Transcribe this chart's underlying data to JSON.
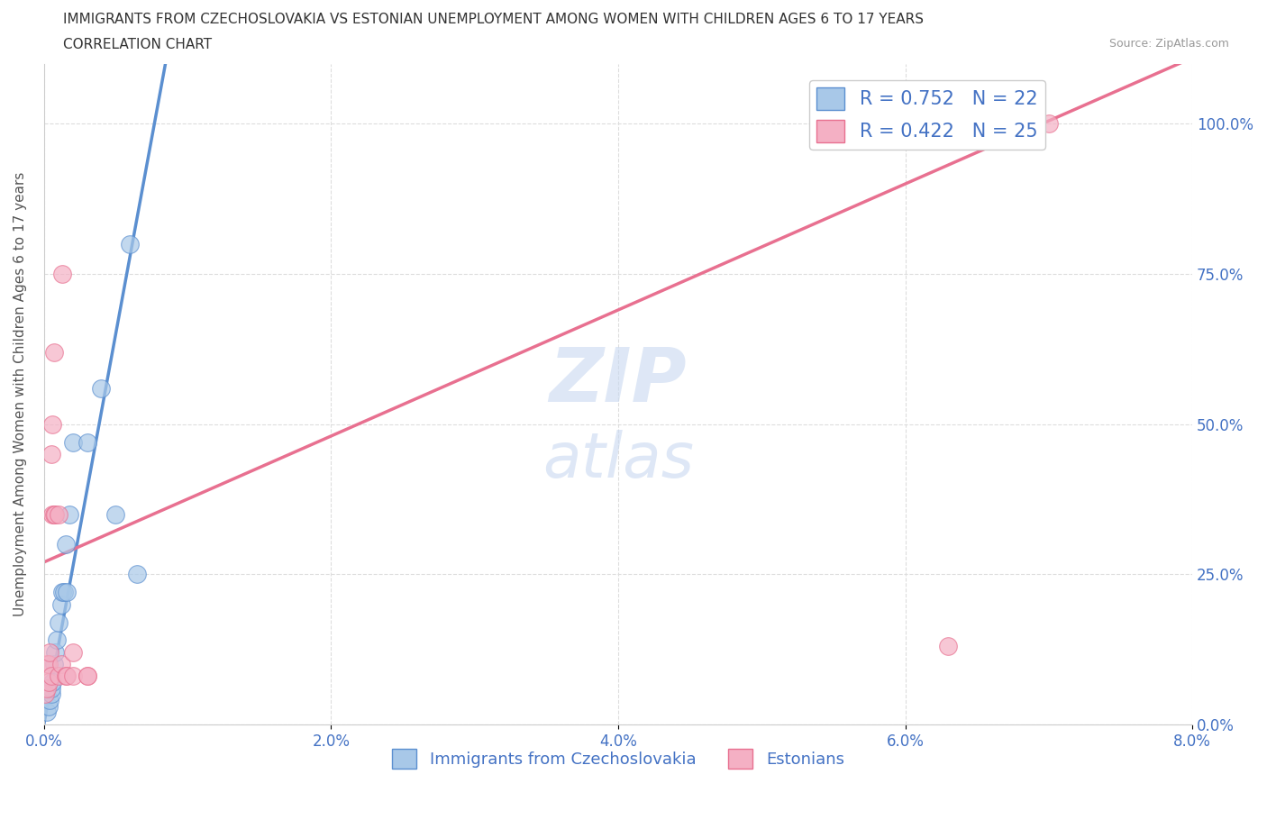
{
  "title_line1": "IMMIGRANTS FROM CZECHOSLOVAKIA VS ESTONIAN UNEMPLOYMENT AMONG WOMEN WITH CHILDREN AGES 6 TO 17 YEARS",
  "title_line2": "CORRELATION CHART",
  "source": "Source: ZipAtlas.com",
  "ylabel": "Unemployment Among Women with Children Ages 6 to 17 years",
  "xlim": [
    0.0,
    0.08
  ],
  "ylim": [
    0.0,
    1.1
  ],
  "xticks": [
    0.0,
    0.02,
    0.04,
    0.06,
    0.08
  ],
  "xtick_labels": [
    "0.0%",
    "2.0%",
    "4.0%",
    "6.0%",
    "8.0%"
  ],
  "yticks": [
    0.0,
    0.25,
    0.5,
    0.75,
    1.0
  ],
  "ytick_labels": [
    "0.0%",
    "25.0%",
    "50.0%",
    "75.0%",
    "100.0%"
  ],
  "blue_color": "#A8C8E8",
  "pink_color": "#F4B0C4",
  "blue_line_color": "#5B8FD0",
  "pink_line_color": "#E87090",
  "legend_text_color": "#4472C4",
  "R_blue": 0.752,
  "N_blue": 22,
  "R_pink": 0.422,
  "N_pink": 25,
  "blue_points_x": [
    0.0002,
    0.0003,
    0.0004,
    0.0005,
    0.0005,
    0.0006,
    0.0007,
    0.0008,
    0.0009,
    0.001,
    0.0012,
    0.0013,
    0.0014,
    0.0015,
    0.0016,
    0.0018,
    0.002,
    0.003,
    0.004,
    0.005,
    0.006,
    0.0065
  ],
  "blue_points_y": [
    0.02,
    0.03,
    0.04,
    0.05,
    0.06,
    0.07,
    0.1,
    0.12,
    0.14,
    0.17,
    0.2,
    0.22,
    0.22,
    0.3,
    0.22,
    0.35,
    0.47,
    0.47,
    0.56,
    0.35,
    0.8,
    0.25
  ],
  "pink_points_x": [
    0.0001,
    0.0002,
    0.0002,
    0.0003,
    0.0003,
    0.0004,
    0.0005,
    0.0005,
    0.0006,
    0.0006,
    0.0007,
    0.0007,
    0.0008,
    0.001,
    0.001,
    0.0012,
    0.0013,
    0.0015,
    0.0016,
    0.002,
    0.002,
    0.003,
    0.003,
    0.063,
    0.07
  ],
  "pink_points_y": [
    0.05,
    0.06,
    0.1,
    0.07,
    0.1,
    0.12,
    0.08,
    0.45,
    0.35,
    0.5,
    0.35,
    0.62,
    0.35,
    0.08,
    0.35,
    0.1,
    0.75,
    0.08,
    0.08,
    0.08,
    0.12,
    0.08,
    0.08,
    0.13,
    1.0
  ],
  "legend_labels": [
    "Immigrants from Czechoslovakia",
    "Estonians"
  ],
  "background_color": "#ffffff",
  "grid_color": "#DDDDDD",
  "blue_intercept": 0.0,
  "blue_slope": 130.0,
  "pink_intercept": 0.27,
  "pink_slope": 10.5
}
